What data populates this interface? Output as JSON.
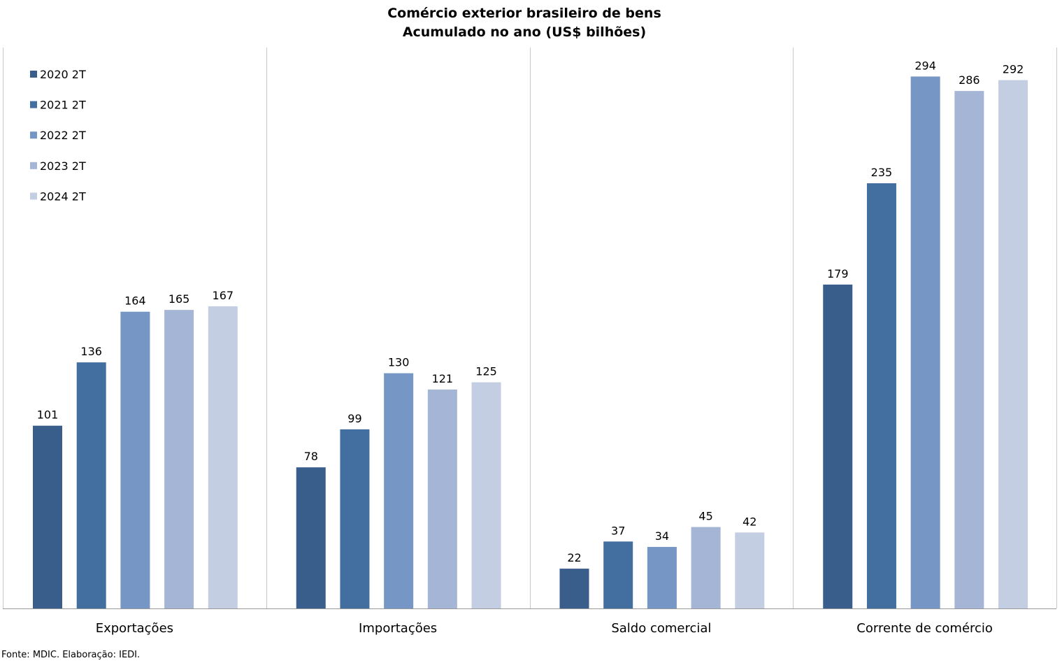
{
  "chart_data": {
    "type": "bar",
    "title": "Comércio exterior brasileiro de bens",
    "subtitle": "Acumulado no ano (US$ bilhões)",
    "categories": [
      "Exportações",
      "Importações",
      "Saldo comercial",
      "Corrente de comércio"
    ],
    "series": [
      {
        "name": "2020 2T",
        "color": "#3a5e8c",
        "values": [
          101,
          78,
          22,
          179
        ]
      },
      {
        "name": "2021 2T",
        "color": "#426ea0",
        "values": [
          136,
          99,
          37,
          235
        ]
      },
      {
        "name": "2022 2T",
        "color": "#7696c5",
        "values": [
          164,
          130,
          34,
          294
        ]
      },
      {
        "name": "2023 2T",
        "color": "#a4b5d6",
        "values": [
          165,
          121,
          45,
          286
        ]
      },
      {
        "name": "2024 2T",
        "color": "#c3cee3",
        "values": [
          167,
          125,
          42,
          292
        ]
      }
    ],
    "ylim": [
      0,
      310
    ],
    "data_labels": true,
    "legend": "top-left",
    "grid": false,
    "category_separators": true
  },
  "footer": {
    "source": "Fonte: MDIC. Elaboração: IEDI."
  }
}
